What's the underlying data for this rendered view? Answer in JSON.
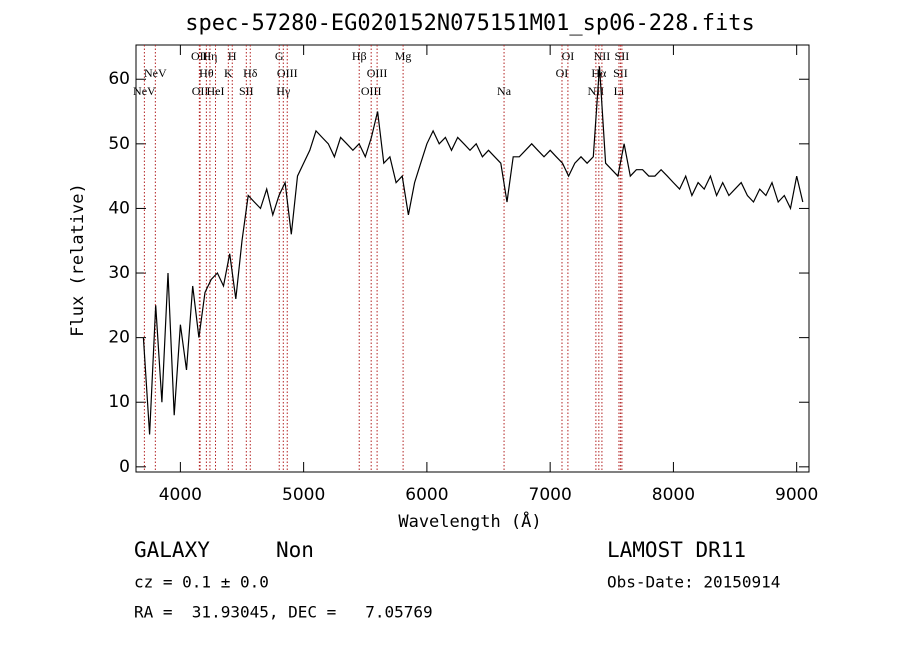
{
  "chart_data": {
    "type": "line",
    "title": "spec-57280-EG020152N075151M01_sp06-228.fits",
    "x_label": "Wavelength (Å)",
    "y_label": "Flux (relative)",
    "xlim": [
      3640,
      9100
    ],
    "ylim": [
      -0.8,
      65.3
    ],
    "xticks": [
      4000,
      5000,
      6000,
      7000,
      8000,
      9000
    ],
    "yticks": [
      0,
      10,
      20,
      30,
      40,
      50,
      60
    ],
    "series": [
      {
        "name": "spectrum",
        "color": "#000000",
        "x": [
          3700,
          3750,
          3800,
          3850,
          3900,
          3950,
          4000,
          4050,
          4100,
          4150,
          4200,
          4250,
          4300,
          4350,
          4400,
          4450,
          4500,
          4550,
          4600,
          4650,
          4700,
          4750,
          4800,
          4850,
          4900,
          4950,
          5000,
          5050,
          5100,
          5150,
          5200,
          5250,
          5300,
          5350,
          5400,
          5450,
          5500,
          5550,
          5600,
          5650,
          5700,
          5750,
          5800,
          5850,
          5900,
          5950,
          6000,
          6050,
          6100,
          6150,
          6200,
          6250,
          6300,
          6350,
          6400,
          6450,
          6500,
          6550,
          6600,
          6650,
          6700,
          6750,
          6800,
          6850,
          6900,
          6950,
          7000,
          7050,
          7100,
          7150,
          7200,
          7250,
          7300,
          7350,
          7400,
          7450,
          7500,
          7550,
          7600,
          7650,
          7700,
          7750,
          7800,
          7850,
          7900,
          7950,
          8000,
          8050,
          8100,
          8150,
          8200,
          8250,
          8300,
          8350,
          8400,
          8450,
          8500,
          8550,
          8600,
          8650,
          8700,
          8750,
          8800,
          8850,
          8900,
          8950,
          9000,
          9050
        ],
        "values": [
          20,
          5,
          25,
          10,
          30,
          8,
          22,
          15,
          28,
          20,
          27,
          29,
          30,
          28,
          33,
          26,
          35,
          42,
          41,
          40,
          43,
          39,
          42,
          44,
          36,
          45,
          47,
          49,
          52,
          51,
          50,
          48,
          51,
          50,
          49,
          50,
          48,
          51,
          55,
          47,
          48,
          44,
          45,
          39,
          44,
          47,
          50,
          52,
          50,
          51,
          49,
          51,
          50,
          49,
          50,
          48,
          49,
          48,
          47,
          41,
          48,
          48,
          49,
          50,
          49,
          48,
          49,
          48,
          47,
          45,
          47,
          48,
          47,
          48,
          62,
          47,
          46,
          45,
          50,
          45,
          46,
          46,
          45,
          45,
          46,
          45,
          44,
          43,
          45,
          42,
          44,
          43,
          45,
          42,
          44,
          42,
          43,
          44,
          42,
          41,
          43,
          42,
          44,
          41,
          42,
          40,
          45,
          41
        ]
      }
    ],
    "line_color": "#b22222",
    "annotations": [
      {
        "label": "NeV",
        "value": 3708
      },
      {
        "label": "NeV",
        "value": 3797
      },
      {
        "label": "OII",
        "value": 4154
      },
      {
        "label": "OII",
        "value": 4160
      },
      {
        "label": "Hθ",
        "value": 4211
      },
      {
        "label": "Hη",
        "value": 4240
      },
      {
        "label": "HeI",
        "value": 4285
      },
      {
        "label": "K",
        "value": 4389
      },
      {
        "label": "H",
        "value": 4421
      },
      {
        "label": "SII",
        "value": 4535
      },
      {
        "label": "Hδ",
        "value": 4567
      },
      {
        "label": "G",
        "value": 4802
      },
      {
        "label": "Hγ",
        "value": 4835
      },
      {
        "label": "OIII",
        "value": 4867
      },
      {
        "label": "Hβ",
        "value": 5451
      },
      {
        "label": "OIII",
        "value": 5548
      },
      {
        "label": "OIII",
        "value": 5596
      },
      {
        "label": "Mg",
        "value": 5807
      },
      {
        "label": "Na",
        "value": 6626
      },
      {
        "label": "OI",
        "value": 7096
      },
      {
        "label": "OI",
        "value": 7144
      },
      {
        "label": "NII",
        "value": 7371
      },
      {
        "label": "Hα",
        "value": 7395
      },
      {
        "label": "NII",
        "value": 7420
      },
      {
        "label": "Li",
        "value": 7558
      },
      {
        "label": "SII",
        "value": 7570
      },
      {
        "label": "SII",
        "value": 7582
      }
    ]
  },
  "footer": {
    "class": "GALAXY",
    "subclass": "Non",
    "release": "LAMOST DR11",
    "cz": "cz = 0.1 ± 0.0",
    "obs_date": "Obs-Date: 20150914",
    "coords": "RA =  31.93045, DEC =   7.05769"
  }
}
